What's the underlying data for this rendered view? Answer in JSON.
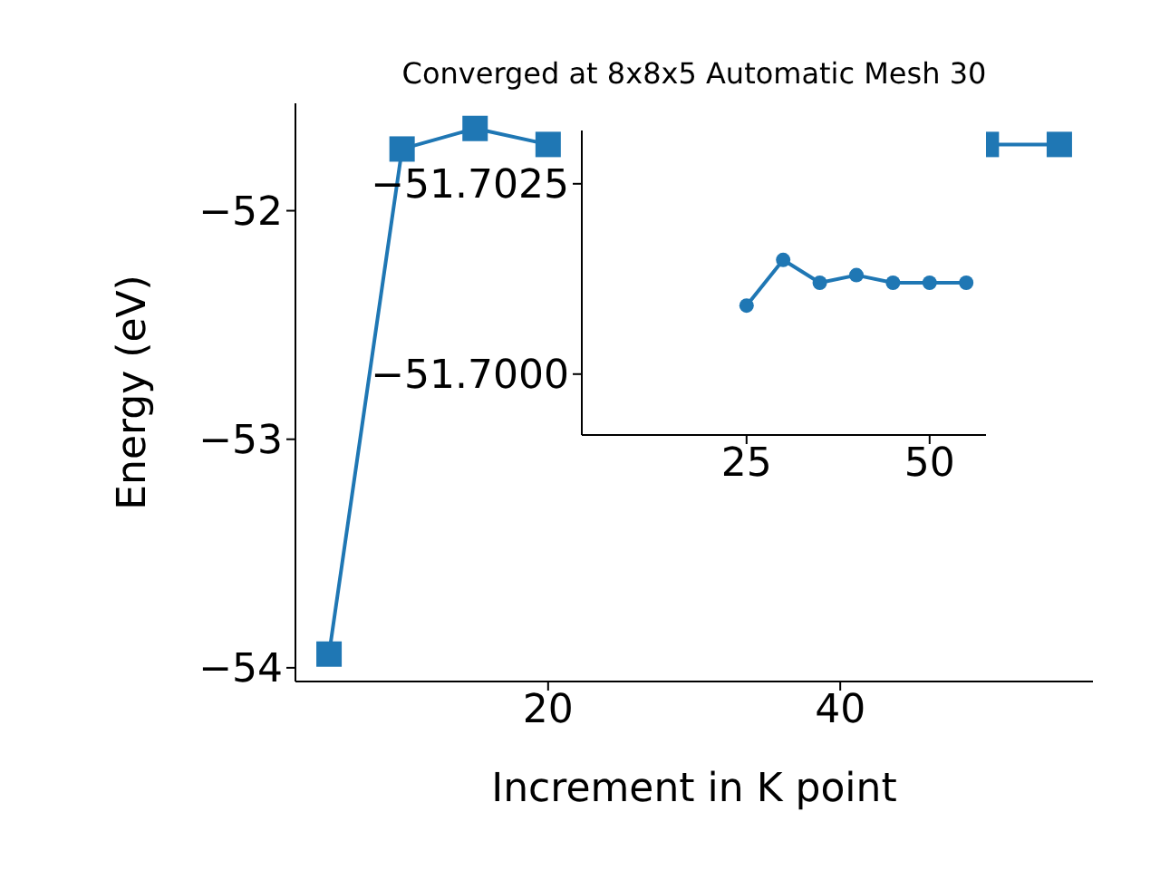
{
  "chart_data": [
    {
      "type": "line",
      "title": "Converged at 8x8x5 Automatic Mesh 30",
      "xlabel": "Increment in K point",
      "ylabel": "Energy (eV)",
      "x": [
        5,
        10,
        15,
        20,
        25,
        30,
        35,
        40,
        45,
        50,
        55
      ],
      "series": [
        {
          "color": "#1f77b4",
          "values": [
            -53.94,
            -51.73,
            -51.64,
            -51.71,
            null,
            null,
            null,
            null,
            null,
            -51.71,
            -51.71
          ]
        }
      ],
      "xlim": [
        2.7,
        57.3
      ],
      "xticks": [
        20,
        40
      ],
      "ylim": [
        -54.06,
        -51.53
      ],
      "yticks": [
        {
          "value": -54,
          "label": "−54"
        },
        {
          "value": -53,
          "label": "−53"
        },
        {
          "value": -52,
          "label": "−52"
        }
      ],
      "marker": "square",
      "grid": false,
      "legend": false
    },
    {
      "type": "line",
      "x": [
        25,
        30,
        35,
        40,
        45,
        50,
        55
      ],
      "series": [
        {
          "color": "#1f77b4",
          "values": [
            -51.7009,
            -51.7015,
            -51.7012,
            -51.7013,
            -51.7012,
            -51.7012,
            -51.7012
          ]
        }
      ],
      "xlim": [
        2.5,
        57.7
      ],
      "xticks": [
        25,
        50
      ],
      "ylim": [
        -51.6992,
        -51.7032
      ],
      "yticks": [
        {
          "value": -51.7025,
          "label": "−51.7025"
        },
        {
          "value": -51.7,
          "label": "−51.7000"
        }
      ],
      "marker": "circle",
      "grid": false,
      "legend": false
    }
  ]
}
